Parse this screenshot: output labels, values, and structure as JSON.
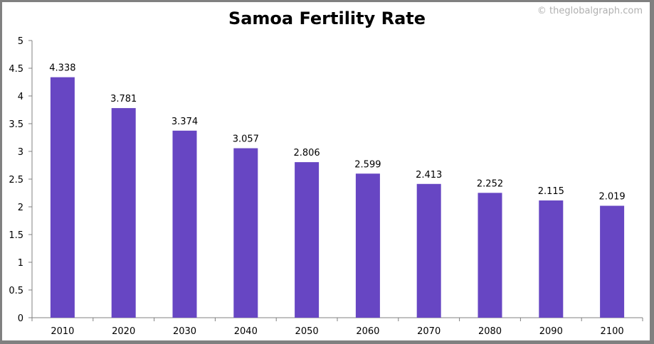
{
  "chart_data": {
    "type": "bar",
    "title": "Samoa Fertility Rate",
    "credit": "© theglobalgraph.com",
    "categories": [
      "2010",
      "2020",
      "2030",
      "2040",
      "2050",
      "2060",
      "2070",
      "2080",
      "2090",
      "2100"
    ],
    "values": [
      4.338,
      3.781,
      3.374,
      3.057,
      2.806,
      2.599,
      2.413,
      2.252,
      2.115,
      2.019
    ],
    "value_labels": [
      "4.338",
      "3.781",
      "3.374",
      "3.057",
      "2.806",
      "2.599",
      "2.413",
      "2.252",
      "2.115",
      "2.019"
    ],
    "ylim": [
      0,
      5
    ],
    "yticks": [
      "0",
      "0.5",
      "1",
      "1.5",
      "2",
      "2.5",
      "3",
      "3.5",
      "4",
      "4.5",
      "5"
    ],
    "grid": false,
    "legend": "none",
    "bar_color": "#6746C3",
    "axis_color": "#808080"
  }
}
